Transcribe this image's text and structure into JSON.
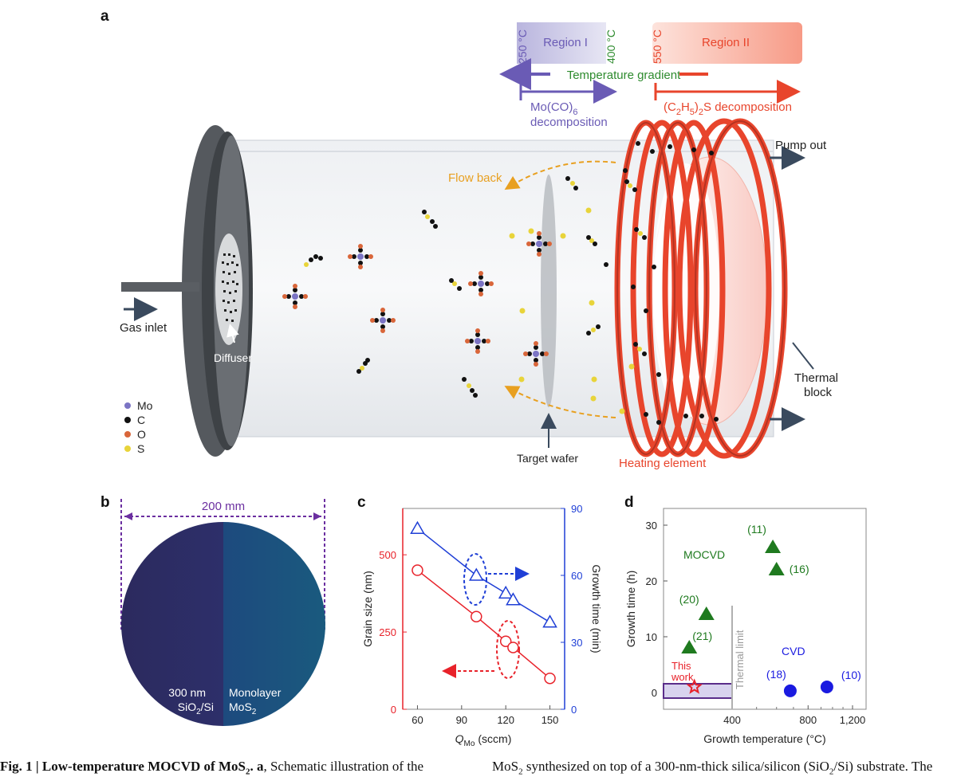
{
  "panel_a": {
    "label": "a",
    "region1": {
      "temp_low": "250 °C",
      "name": "Region I",
      "temp_high": "400 °C"
    },
    "region2": {
      "temp": "550 °C",
      "name": "Region II"
    },
    "temperature_gradient": "Temperature gradient",
    "mo_decomp_1": "Mo(CO)",
    "mo_decomp_sub": "6",
    "mo_decomp_2": "decomposition",
    "s_decomp_pre": "(C",
    "s_decomp_sub1": "2",
    "s_decomp_mid": "H",
    "s_decomp_sub2": "5",
    "s_decomp_post": ")",
    "s_decomp_sub3": "2",
    "s_decomp_tail": "S decomposition",
    "pump_out": "Pump out",
    "flow_back": "Flow back",
    "gas_inlet": "Gas inlet",
    "diffuser": "Diffuser",
    "target_wafer": "Target wafer",
    "heating_element": "Heating element",
    "thermal_block_1": "Thermal",
    "thermal_block_2": "block",
    "legend": [
      {
        "label": "Mo",
        "color": "#7b74c4"
      },
      {
        "label": "C",
        "color": "#111111"
      },
      {
        "label": "O",
        "color": "#d9663a"
      },
      {
        "label": "S",
        "color": "#e8d43a"
      }
    ],
    "colors": {
      "purple": "#6a5bb5",
      "green": "#2e8b2e",
      "red": "#e8452c",
      "orange": "#e8a020",
      "dark": "#3a4a5e"
    }
  },
  "panel_b": {
    "label": "b",
    "dimension": "200 mm",
    "left_1": "300 nm",
    "left_2a": "SiO",
    "left_2sub": "2",
    "left_2b": "/Si",
    "right_1": "Monolayer",
    "right_2a": "MoS",
    "right_2sub": "2"
  },
  "chart_data": [
    {
      "panel": "c",
      "type": "line",
      "xlabel_main": "Q",
      "xlabel_sub": "Mo",
      "xlabel_unit": "(sccm)",
      "ylabel_left": "Grain size (nm)",
      "ylabel_right": "Growth time (min)",
      "x_ticks": [
        "60",
        "90",
        "120",
        "150"
      ],
      "y_left_ticks": [
        "0",
        "250",
        "500"
      ],
      "y_right_ticks": [
        "0",
        "30",
        "60",
        "90"
      ],
      "xlim": [
        50,
        160
      ],
      "ylim_left": [
        0,
        650
      ],
      "ylim_right": [
        0,
        90
      ],
      "series": [
        {
          "axis": "left",
          "color": "#e8222a",
          "marker": "circle",
          "x": [
            60,
            100,
            120,
            125,
            150
          ],
          "y": [
            450,
            300,
            220,
            200,
            100
          ]
        },
        {
          "axis": "right",
          "color": "#1f3fd6",
          "marker": "triangle",
          "x": [
            60,
            100,
            120,
            125,
            150
          ],
          "y": [
            81,
            60,
            52,
            49,
            39
          ]
        }
      ]
    },
    {
      "panel": "d",
      "type": "scatter",
      "xlabel": "Growth temperature (°C)",
      "ylabel": "Growth time (h)",
      "x_ticks": [
        "400",
        "800",
        "1,200"
      ],
      "y_ticks": [
        "0",
        "10",
        "20",
        "30"
      ],
      "ylim": [
        -3,
        33
      ],
      "threshold_label": "Thermal limit",
      "group_labels": {
        "mocvd": "MOCVD",
        "cvd": "CVD",
        "this_work_1": "This",
        "this_work_2": "work"
      },
      "series": [
        {
          "name": "MOCVD",
          "color": "#1f7a1f",
          "marker": "triangle",
          "points": [
            {
              "x": 150,
              "y": 8,
              "ref": "(21)"
            },
            {
              "x": 250,
              "y": 14,
              "ref": "(20)"
            },
            {
              "x": 580,
              "y": 26,
              "ref": "(11)"
            },
            {
              "x": 600,
              "y": 22,
              "ref": "(16)"
            }
          ]
        },
        {
          "name": "CVD",
          "color": "#1a1ae0",
          "marker": "circle",
          "points": [
            {
              "x": 680,
              "y": 0.3,
              "ref": "(18)"
            },
            {
              "x": 950,
              "y": 1,
              "ref": "(10)"
            }
          ]
        },
        {
          "name": "This work",
          "color": "#e8222a",
          "marker": "star",
          "points": [
            {
              "x": 180,
              "y": 1
            }
          ]
        }
      ]
    }
  ],
  "caption": {
    "left_bold": "Fig. 1 | Low-temperature MOCVD of MoS",
    "left_bold_sub": "2",
    "left_bold_end": ". a",
    "left_rest": ", Schematic illustration of the",
    "right_a": "MoS",
    "right_sub": "2",
    "right_b": " synthesized on top of a 300-nm-thick silica/silicon (SiO",
    "right_sub2": "2",
    "right_c": "/Si) substrate. The"
  }
}
